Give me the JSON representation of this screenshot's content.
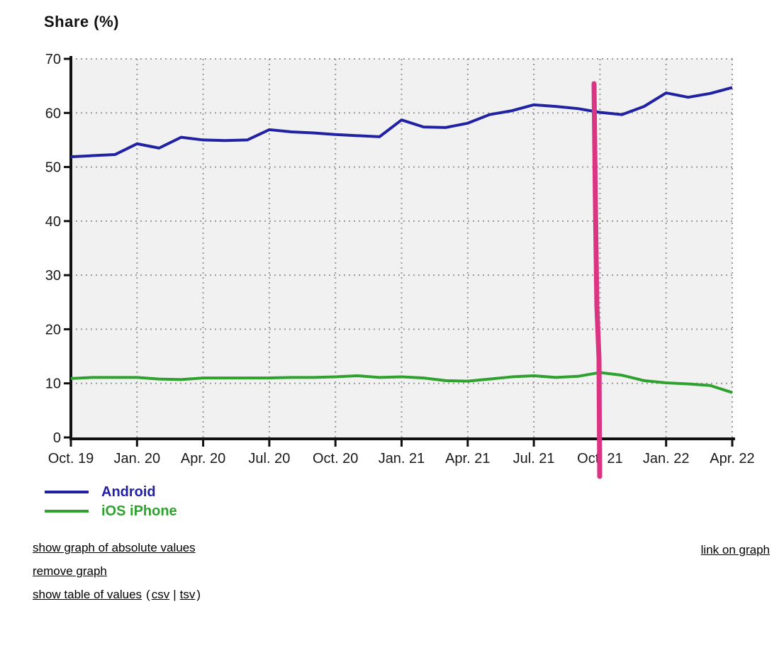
{
  "chart_data": {
    "type": "line",
    "title": "Share (%)",
    "ylabel": "Share (%)",
    "ylim": [
      0,
      70
    ],
    "y_ticks": [
      0,
      10,
      20,
      30,
      40,
      50,
      60,
      70
    ],
    "x_tick_labels": [
      "Oct. 19",
      "Jan. 20",
      "Apr. 20",
      "Jul. 20",
      "Oct. 20",
      "Jan. 21",
      "Apr. 21",
      "Jul. 21",
      "Oct. 21",
      "Jan. 22",
      "Apr. 22"
    ],
    "x_months": [
      "Oct 19",
      "Nov 19",
      "Dec 19",
      "Jan 20",
      "Feb 20",
      "Mar 20",
      "Apr 20",
      "May 20",
      "Jun 20",
      "Jul 20",
      "Aug 20",
      "Sep 20",
      "Oct 20",
      "Nov 20",
      "Dec 20",
      "Jan 21",
      "Feb 21",
      "Mar 21",
      "Apr 21",
      "May 21",
      "Jun 21",
      "Jul 21",
      "Aug 21",
      "Sep 21",
      "Oct 21",
      "Nov 21",
      "Dec 21",
      "Jan 22",
      "Feb 22",
      "Mar 22",
      "Apr 22"
    ],
    "series": [
      {
        "name": "Android",
        "color": "#2121a3",
        "values": [
          51.9,
          52.1,
          52.3,
          54.3,
          53.5,
          55.5,
          55.0,
          54.9,
          55.0,
          56.9,
          56.5,
          56.3,
          56.0,
          55.8,
          55.6,
          58.7,
          57.4,
          57.3,
          58.1,
          59.7,
          60.4,
          61.5,
          61.2,
          60.8,
          60.1,
          59.7,
          61.2,
          63.7,
          62.9,
          63.6,
          64.7
        ]
      },
      {
        "name": "iOS iPhone",
        "color": "#2fa12f",
        "values": [
          10.9,
          11.1,
          11.1,
          11.1,
          10.8,
          10.7,
          11.0,
          11.0,
          11.0,
          11.0,
          11.1,
          11.1,
          11.2,
          11.4,
          11.1,
          11.2,
          11.0,
          10.5,
          10.4,
          10.8,
          11.2,
          11.4,
          11.1,
          11.3,
          12.0,
          11.5,
          10.5,
          10.1,
          9.9,
          9.6,
          8.3
        ]
      }
    ],
    "grid": "dotted",
    "grid_color": "#999999",
    "plot_bg": "#f1f1f2",
    "axis_color": "#111111",
    "legend_position": "bottom-left",
    "annotation": {
      "name": "pink-hand-drawn-vertical-line",
      "color": "#da3483",
      "stroke_width": 7,
      "points": [
        [
          838,
          118
        ],
        [
          840,
          290
        ],
        [
          842,
          432
        ],
        [
          845,
          505
        ],
        [
          846,
          672
        ]
      ]
    }
  },
  "legend": {
    "items": [
      {
        "label": "Android",
        "color": "#2121a3"
      },
      {
        "label": "iOS iPhone",
        "color": "#2fa12f"
      }
    ]
  },
  "links": {
    "absolute": "show graph of absolute values",
    "remove": "remove graph",
    "table": "show table of values",
    "open_paren": "(",
    "csv": "csv",
    "pipe": "|",
    "tsv": "tsv",
    "close_paren": ")",
    "link_on_graph": "link on graph"
  }
}
